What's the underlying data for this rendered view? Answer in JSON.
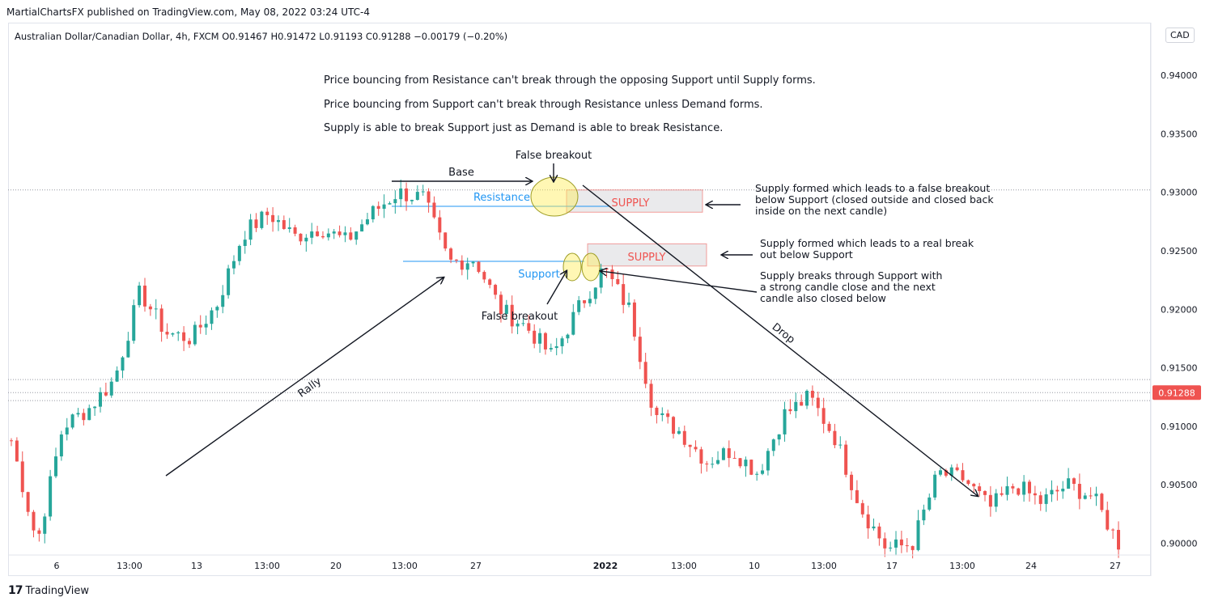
{
  "header": {
    "publisher_line": "MartialChartsFX published on TradingView.com, May 08, 2022 03:24 UTC-4",
    "symbol_line": "Australian Dollar/Canadian Dollar, 4h, FXCM  O0.91467  H0.91472  L0.91193  C0.91288  −0.00179 (−0.20%)",
    "currency": "CAD"
  },
  "notes": [
    "Price bouncing from Resistance can't break through the opposing Support until Supply forms.",
    "Price bouncing from Support can't break through Resistance unless Demand forms.",
    "Supply is able to break Support just as Demand is able to break Resistance."
  ],
  "callouts": {
    "callout1": [
      "Supply formed which leads to a false breakout",
      "below Support (closed outside and closed back",
      "inside on the next candle)"
    ],
    "callout2": [
      "Supply formed which leads to a real break",
      "out below Support"
    ],
    "callout3": [
      "Supply breaks through Support with",
      "a strong candle close and the next",
      "candle also closed below"
    ]
  },
  "labels": {
    "false_breakout_top": "False breakout",
    "false_breakout_bottom": "False breakout",
    "base": "Base",
    "resistance": "Resistance",
    "support": "Support",
    "supply_1": "SUPPLY",
    "supply_2": "SUPPLY",
    "rally": "Rally",
    "drop": "Drop"
  },
  "footer": {
    "logo": "17",
    "brand": "TradingView"
  },
  "colors": {
    "up": "#26a69a",
    "down": "#ef5350",
    "accent_blue": "#2196f3",
    "supply_red": "#ef5350",
    "last_price_bg": "#ef5350"
  },
  "chart_data": {
    "type": "candlestick",
    "symbol": "Australian Dollar/Canadian Dollar",
    "timeframe": "4h",
    "ylim": [
      0.899,
      0.9445
    ],
    "y_ticks": [
      0.9,
      0.905,
      0.91,
      0.915,
      0.92,
      0.925,
      0.93,
      0.935,
      0.94
    ],
    "y_tick_labels": [
      "0.90000",
      "0.90500",
      "0.91000",
      "0.91500",
      "0.92000",
      "0.92500",
      "0.93000",
      "0.93500",
      "0.94000"
    ],
    "x_tick_labels": [
      "6",
      "13:00",
      "13",
      "13:00",
      "20",
      "13:00",
      "27",
      "2022",
      "13:00",
      "10",
      "13:00",
      "17",
      "13:00",
      "24",
      "27"
    ],
    "last_price": 0.91288,
    "last_price_label": "0.91288",
    "resistance_level": 0.9288,
    "support_level": 0.9241,
    "supply_zones": [
      {
        "label": "SUPPLY",
        "top": 0.9302,
        "bottom": 0.9283
      },
      {
        "label": "SUPPLY",
        "top": 0.9256,
        "bottom": 0.9237
      }
    ],
    "key_points": [
      0.9088,
      0.9,
      0.91,
      0.9115,
      0.914,
      0.9215,
      0.918,
      0.9175,
      0.9205,
      0.9265,
      0.9282,
      0.9262,
      0.927,
      0.9258,
      0.9282,
      0.93,
      0.9295,
      0.924,
      0.9243,
      0.92,
      0.9185,
      0.916,
      0.92,
      0.9235,
      0.92,
      0.911,
      0.9095,
      0.907,
      0.908,
      0.906,
      0.911,
      0.9125,
      0.909,
      0.903,
      0.8995,
      0.9,
      0.906,
      0.9055,
      0.903,
      0.905,
      0.9035,
      0.905,
      0.904,
      0.9
    ]
  }
}
